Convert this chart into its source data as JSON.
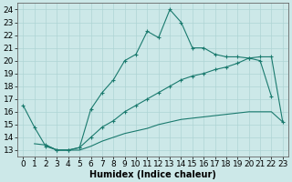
{
  "xlabel": "Humidex (Indice chaleur)",
  "bg_color": "#cce8e8",
  "line_color": "#1a7a6e",
  "xlim": [
    -0.5,
    23.5
  ],
  "ylim": [
    12.5,
    24.5
  ],
  "xticks": [
    0,
    1,
    2,
    3,
    4,
    5,
    6,
    7,
    8,
    9,
    10,
    11,
    12,
    13,
    14,
    15,
    16,
    17,
    18,
    19,
    20,
    21,
    22,
    23
  ],
  "yticks": [
    13,
    14,
    15,
    16,
    17,
    18,
    19,
    20,
    21,
    22,
    23,
    24
  ],
  "line1_x": [
    0,
    1,
    2,
    3,
    4,
    5,
    6,
    7,
    8,
    9,
    10,
    11,
    12,
    13,
    14,
    15,
    16,
    17,
    18,
    19,
    20,
    21,
    22,
    23
  ],
  "line1_y": [
    16.5,
    14.8,
    13.3,
    13.0,
    13.0,
    13.2,
    16.2,
    17.5,
    18.5,
    20.0,
    20.5,
    22.3,
    21.8,
    24.0,
    23.0,
    21.0,
    21.0,
    20.5,
    20.3,
    20.3,
    20.2,
    20.0,
    17.2,
    null
  ],
  "line2_x": [
    0,
    1,
    2,
    3,
    4,
    5,
    6,
    7,
    8,
    9,
    10,
    11,
    12,
    13,
    14,
    15,
    16,
    17,
    18,
    19,
    20,
    21,
    22,
    23
  ],
  "line2_y": [
    null,
    null,
    13.4,
    13.0,
    13.0,
    13.2,
    14.0,
    14.8,
    15.3,
    16.0,
    16.5,
    17.0,
    17.5,
    18.0,
    18.5,
    18.8,
    19.0,
    19.3,
    19.5,
    19.8,
    20.2,
    20.3,
    20.3,
    15.2
  ],
  "line3_x": [
    0,
    1,
    2,
    3,
    4,
    5,
    6,
    7,
    8,
    9,
    10,
    11,
    12,
    13,
    14,
    15,
    16,
    17,
    18,
    19,
    20,
    21,
    22,
    23
  ],
  "line3_y": [
    null,
    13.5,
    13.4,
    13.0,
    13.0,
    13.0,
    13.3,
    13.7,
    14.0,
    14.3,
    14.5,
    14.7,
    15.0,
    15.2,
    15.4,
    15.5,
    15.6,
    15.7,
    15.8,
    15.9,
    16.0,
    16.0,
    16.0,
    15.2
  ],
  "grid_color": "#aed4d4",
  "xlabel_fontsize": 7,
  "tick_fontsize": 6.5
}
